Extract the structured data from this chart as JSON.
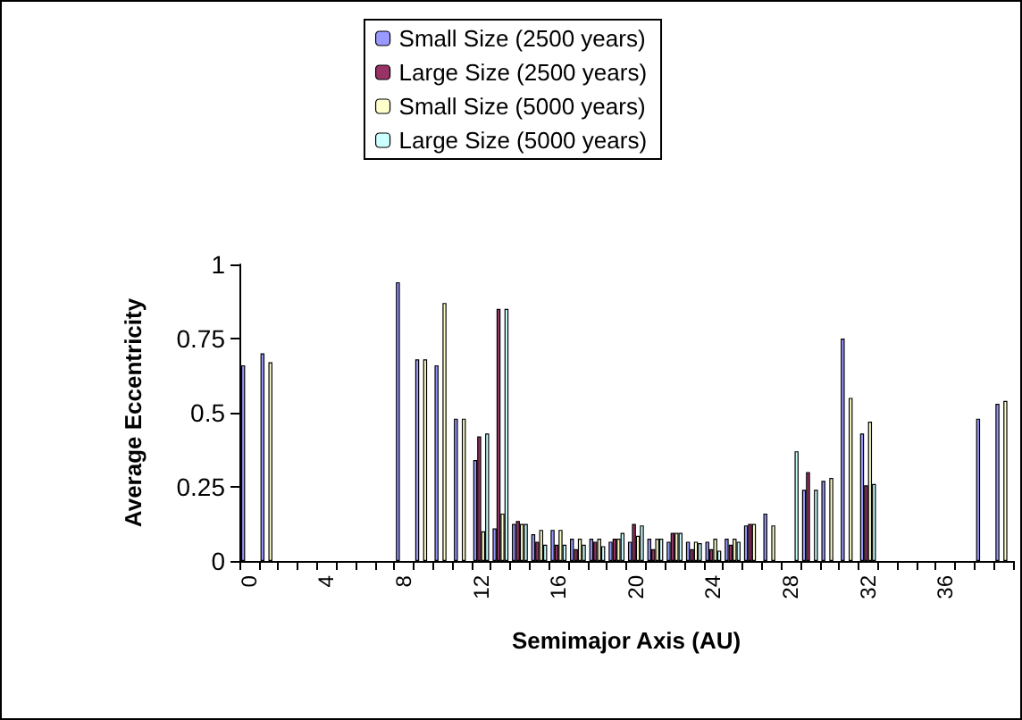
{
  "chart_data": {
    "type": "bar",
    "xlabel": "Semimajor Axis (AU)",
    "ylabel": "Average Eccentricity",
    "categories": [
      "0",
      null,
      null,
      null,
      "4",
      null,
      null,
      null,
      "8",
      null,
      null,
      null,
      "12",
      null,
      null,
      null,
      "16",
      null,
      null,
      null,
      "20",
      null,
      null,
      null,
      "24",
      null,
      null,
      null,
      "28",
      null,
      null,
      null,
      "32",
      null,
      null,
      null,
      "36",
      null,
      null,
      null
    ],
    "series": [
      {
        "name": "Small Size (2500 years)",
        "color": "#9999ff",
        "values": [
          0.66,
          0.7,
          null,
          null,
          null,
          null,
          null,
          null,
          0.94,
          0.68,
          0.66,
          0.48,
          0.34,
          0.11,
          0.125,
          0.09,
          0.105,
          0.075,
          0.075,
          0.065,
          0.065,
          0.075,
          0.065,
          0.065,
          0.065,
          0.075,
          0.12,
          0.16,
          null,
          0.24,
          0.27,
          0.75,
          0.43,
          null,
          null,
          null,
          null,
          null,
          0.48,
          0.53
        ]
      },
      {
        "name": "Large Size (2500 years)",
        "color": "#993366",
        "values": [
          null,
          null,
          null,
          null,
          null,
          null,
          null,
          null,
          null,
          null,
          null,
          null,
          0.42,
          0.85,
          0.135,
          0.065,
          0.055,
          0.04,
          0.065,
          0.075,
          0.125,
          0.04,
          0.095,
          0.04,
          0.04,
          0.055,
          0.125,
          null,
          null,
          0.3,
          null,
          null,
          0.255,
          null,
          null,
          null,
          null,
          null,
          null,
          null
        ]
      },
      {
        "name": "Small Size (5000 years)",
        "color": "#ffffcc",
        "values": [
          null,
          0.67,
          null,
          null,
          null,
          null,
          null,
          null,
          null,
          0.68,
          0.87,
          0.48,
          0.1,
          0.16,
          0.125,
          0.105,
          0.105,
          0.075,
          0.075,
          0.075,
          0.085,
          0.075,
          0.095,
          0.065,
          0.075,
          0.075,
          0.125,
          0.12,
          null,
          null,
          0.28,
          0.55,
          0.47,
          null,
          null,
          null,
          null,
          null,
          null,
          0.54
        ]
      },
      {
        "name": "Large Size (5000 years)",
        "color": "#ccffff",
        "values": [
          null,
          null,
          null,
          null,
          null,
          null,
          null,
          null,
          null,
          null,
          null,
          null,
          0.43,
          0.85,
          0.125,
          0.055,
          0.055,
          0.055,
          0.05,
          0.095,
          0.12,
          0.075,
          0.095,
          0.06,
          0.035,
          0.065,
          null,
          null,
          0.37,
          0.24,
          null,
          null,
          0.26,
          null,
          null,
          null,
          null,
          null,
          null,
          null
        ]
      }
    ],
    "ylim": [
      0,
      1
    ],
    "yticks": [
      0,
      {
        "value": 0.25,
        "label": "0.25"
      },
      {
        "value": 0.5,
        "label": "0.5"
      },
      {
        "value": 0.75,
        "label": "0.75"
      },
      1
    ],
    "legend": "top",
    "grid": false
  }
}
